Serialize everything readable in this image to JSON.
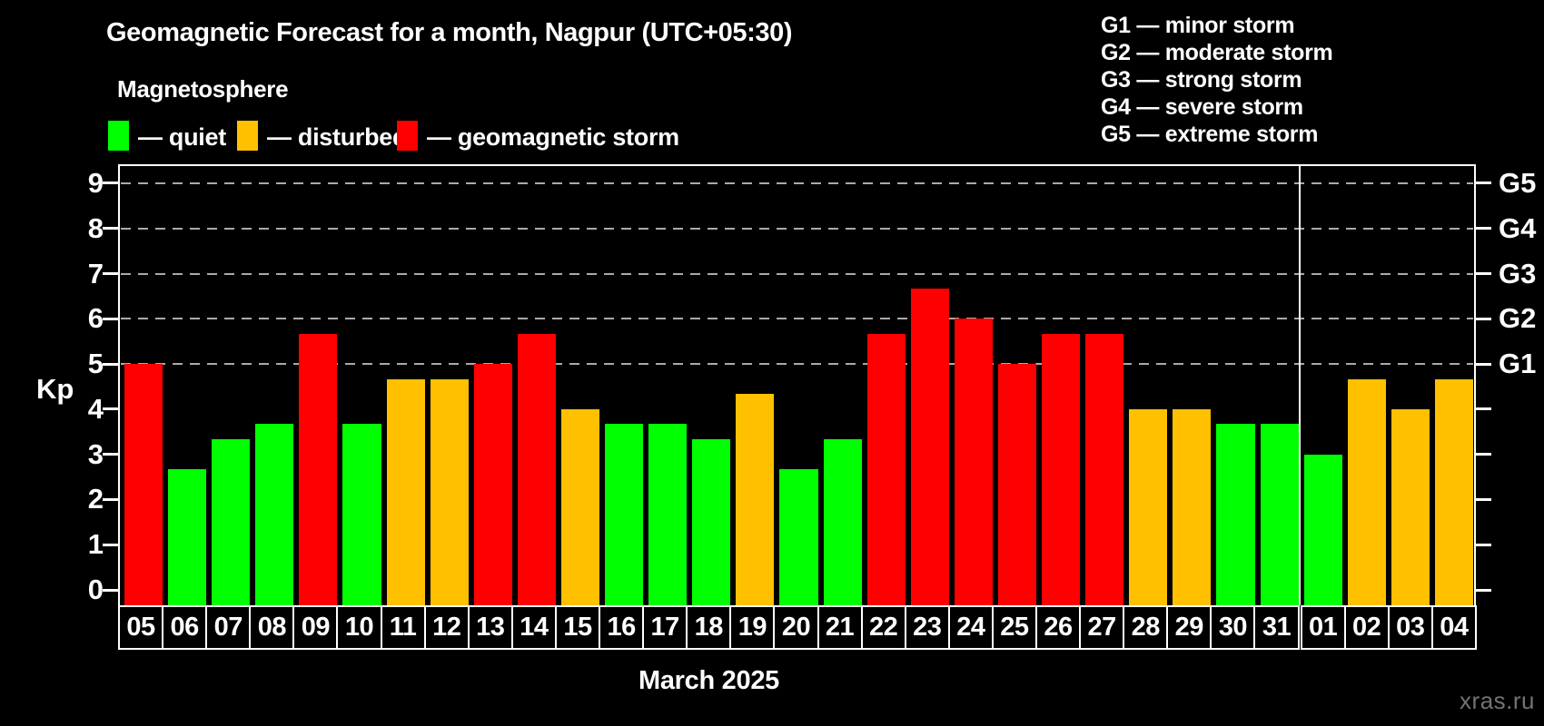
{
  "page": {
    "title": "Geomagnetic Forecast for a month, Nagpur (UTC+05:30)",
    "subtitle": "Magnetosphere",
    "watermark": "xras.ru"
  },
  "legend": {
    "items": [
      {
        "id": "quiet",
        "label": "— quiet",
        "color": "#00ff00",
        "x": 119
      },
      {
        "id": "disturbed",
        "label": "— disturbed",
        "color": "#ffc000",
        "x": 261
      },
      {
        "id": "storm",
        "label": "— geomagnetic storm",
        "color": "#ff0000",
        "x": 437
      }
    ]
  },
  "g_legend": {
    "items": [
      "G1 — minor storm",
      "G2 — moderate storm",
      "G3 — strong storm",
      "G4 — severe storm",
      "G5 — extreme storm"
    ]
  },
  "axis": {
    "kp_label": "Kp",
    "y_ticks": [
      "0",
      "1",
      "2",
      "3",
      "4",
      "5",
      "6",
      "7",
      "8",
      "9"
    ],
    "g_labels": [
      {
        "label": "G1",
        "kp": 5
      },
      {
        "label": "G2",
        "kp": 6
      },
      {
        "label": "G3",
        "kp": 7
      },
      {
        "label": "G4",
        "kp": 8
      },
      {
        "label": "G5",
        "kp": 9
      }
    ],
    "x_month_label": "March 2025"
  },
  "colors": {
    "background": "#000000",
    "text": "#ffffff",
    "quiet": "#00ff00",
    "disturbed": "#ffc000",
    "storm": "#ff0000",
    "grid": "#aaaaaa",
    "watermark": "#737373"
  },
  "chart_data": {
    "type": "bar",
    "title": "Geomagnetic Forecast for a month, Nagpur (UTC+05:30)",
    "ylabel": "Kp",
    "ylim": [
      0,
      9
    ],
    "grid": "dashed horizontal at Kp 5-9 (G1-G5), legend top, black background",
    "categories": [
      "05",
      "06",
      "07",
      "08",
      "09",
      "10",
      "11",
      "12",
      "13",
      "14",
      "15",
      "16",
      "17",
      "18",
      "19",
      "20",
      "21",
      "22",
      "23",
      "24",
      "25",
      "26",
      "27",
      "28",
      "29",
      "30",
      "31",
      "01",
      "02",
      "03",
      "04"
    ],
    "values": [
      5.0,
      2.67,
      3.33,
      3.67,
      5.67,
      3.67,
      4.67,
      4.67,
      5.0,
      5.67,
      4.0,
      3.67,
      3.67,
      3.33,
      4.33,
      2.67,
      3.33,
      5.67,
      6.67,
      6.0,
      5.0,
      5.67,
      5.67,
      4.0,
      4.0,
      3.67,
      3.67,
      3.0,
      4.67,
      4.0,
      4.67
    ],
    "statuses": [
      "storm",
      "quiet",
      "quiet",
      "quiet",
      "storm",
      "quiet",
      "disturbed",
      "disturbed",
      "storm",
      "storm",
      "disturbed",
      "quiet",
      "quiet",
      "quiet",
      "disturbed",
      "quiet",
      "quiet",
      "storm",
      "storm",
      "storm",
      "storm",
      "storm",
      "storm",
      "disturbed",
      "disturbed",
      "quiet",
      "quiet",
      "quiet",
      "disturbed",
      "disturbed",
      "disturbed"
    ],
    "month_start_index": 27,
    "x_axis_month_label": "March 2025"
  }
}
